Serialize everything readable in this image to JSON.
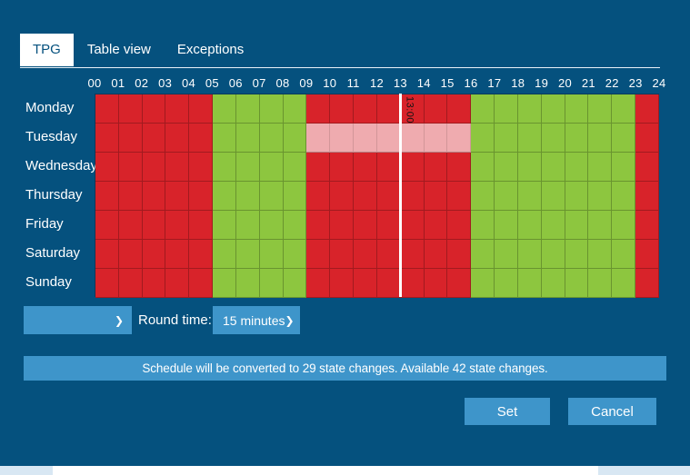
{
  "tabs": [
    {
      "label": "TPG",
      "active": true
    },
    {
      "label": "Table view",
      "active": false
    },
    {
      "label": "Exceptions",
      "active": false
    }
  ],
  "schedule": {
    "hour_labels": [
      "00",
      "01",
      "02",
      "03",
      "04",
      "05",
      "06",
      "07",
      "08",
      "09",
      "10",
      "11",
      "12",
      "13",
      "14",
      "15",
      "16",
      "17",
      "18",
      "19",
      "20",
      "21",
      "22",
      "23",
      "24"
    ],
    "days": [
      {
        "label": "Monday",
        "hours": "RRRRRGGGGRRRRRRRGGGGGGGR"
      },
      {
        "label": "Tuesday",
        "hours": "RRRRRGGGGSSSSSSSGGGGGGGR"
      },
      {
        "label": "Wednesday",
        "hours": "RRRRRGGGGRRRRRRRGGGGGGGR"
      },
      {
        "label": "Thursday",
        "hours": "RRRRRGGGGRRRRRRRGGGGGGGR"
      },
      {
        "label": "Friday",
        "hours": "RRRRRGGGGRRRRRRRGGGGGGGR"
      },
      {
        "label": "Saturday",
        "hours": "RRRRRGGGGRRRRRRRGGGGGGGR"
      },
      {
        "label": "Sunday",
        "hours": "RRRRRGGGGRRRRRRRGGGGGGGR"
      }
    ],
    "cell_states": {
      "R": {
        "meaning": "off",
        "color": "#d8232a"
      },
      "G": {
        "meaning": "on",
        "color": "#8dc63f"
      },
      "S": {
        "meaning": "selected",
        "color": "#efabaf"
      }
    },
    "selection": {
      "day": "Tuesday",
      "from_hour": 9,
      "to_hour": 16
    },
    "cursor": {
      "time": "13:00",
      "hour": 13
    }
  },
  "controls": {
    "state_dropdown_value": "",
    "round_time_label": "Round time:",
    "round_time_value": "15 minutes",
    "chevron_icon": "❯"
  },
  "info_bar": {
    "text": "Schedule will be converted to 29 state changes. Available 42 state changes."
  },
  "buttons": {
    "set_label": "Set",
    "cancel_label": "Cancel"
  },
  "colors": {
    "background": "#05517e",
    "accent_blue": "#3e95ca",
    "red_off": "#d8232a",
    "green_on": "#8dc63f",
    "pink_selection": "#efabaf",
    "scrollbar_track": "#d8e7f3",
    "scrollbar_thumb": "#ffffff"
  }
}
